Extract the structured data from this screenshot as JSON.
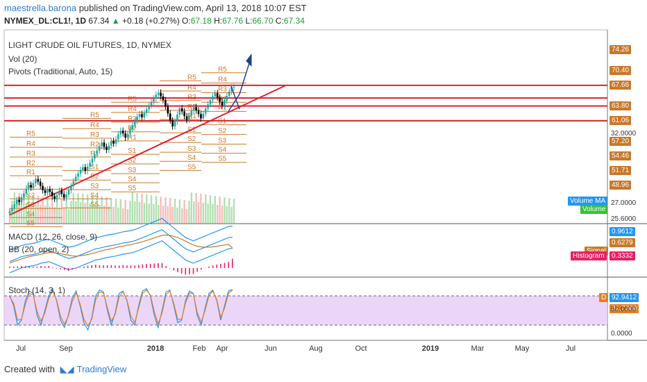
{
  "header": {
    "user": "maestrella.barona",
    "published": "published on TradingView.com, April 13, 2018 10:07 EST",
    "symbol": "NYMEX_DL:CL1!, 1D",
    "last": "67.34",
    "change": "+0.18 (+0.27%)",
    "o_label": "O:",
    "o": "67.18",
    "h_label": "H:",
    "h": "67.76",
    "l_label": "L:",
    "l": "66.70",
    "c_label": "C:",
    "c": "67.34"
  },
  "legends": {
    "title": "LIGHT CRUDE OIL FUTURES, 1D, NYMEX",
    "vol": "Vol (20)",
    "pivots": "Pivots (Traditional, Auto, 15)",
    "macd": "MACD (12, 26, close, 9)",
    "bb": "BB (20, open, 2)",
    "stoch": "Stoch (14, 3, 1)"
  },
  "footer": {
    "created": "Created with",
    "brand": "TradingView"
  },
  "colors": {
    "up": "#26a69a",
    "down": "#000000",
    "pivot": "#c8782a",
    "resistance": "#e0202a",
    "trend": "#e0202a",
    "arrow": "#1f3f8f",
    "stoch_fill": "#e6ccf5"
  },
  "price_tags": [
    {
      "label": "74.26",
      "value": 74.26,
      "color": "#c8782a"
    },
    {
      "label": "70.40",
      "value": 70.4,
      "color": "#c8782a"
    },
    {
      "label": "67.66",
      "value": 67.66,
      "color": "#c8782a"
    },
    {
      "label": "63.80",
      "value": 63.8,
      "color": "#c8782a"
    },
    {
      "label": "61.06",
      "value": 61.06,
      "color": "#c8782a"
    },
    {
      "label": "57.20",
      "value": 57.2,
      "color": "#c8782a"
    },
    {
      "label": "54.46",
      "value": 54.46,
      "color": "#c8782a"
    },
    {
      "label": "51.71",
      "value": 51.71,
      "color": "#c8782a"
    },
    {
      "label": "48.96",
      "value": 48.96,
      "color": "#c8782a"
    }
  ],
  "price_ticks": [
    {
      "label": "32.0000",
      "value": 58.5
    },
    {
      "label": "27.0000",
      "value": 45.5
    },
    {
      "label": "25.6000",
      "value": 42.5
    }
  ],
  "indicator_tags": [
    {
      "label": "Volume MA",
      "color": "#2196f3",
      "pane": "price"
    },
    {
      "label": "Volume",
      "color": "#35c235",
      "pane": "price"
    },
    {
      "label": "0.9612",
      "color": "#2196f3",
      "pane": "macd"
    },
    {
      "label": "0.6279",
      "color": "#c8782a",
      "pane": "macd"
    },
    {
      "label": "Signal",
      "color": "#c8782a",
      "pane": "macd"
    },
    {
      "label": "Histogram",
      "color": "#e91e63",
      "pane": "macd"
    },
    {
      "label": "0.3332",
      "color": "#e91e63",
      "pane": "macd"
    },
    {
      "label": "D",
      "color": "#e67e22",
      "pane": "stoch"
    },
    {
      "label": "92.9412",
      "color": "#2196f3",
      "pane": "stoch"
    },
    {
      "label": "91.7369",
      "color": "#e67e22",
      "pane": "stoch"
    }
  ],
  "stoch_ticks": [
    {
      "label": "50.0000",
      "value": 50
    },
    {
      "label": "0.0000",
      "value": 0
    }
  ],
  "chart_data": {
    "type": "candlestick",
    "x_ticks": [
      "Jul",
      "Sep",
      "2018",
      "Feb",
      "Apr",
      "Jun",
      "Aug",
      "Oct",
      "2019",
      "Mar",
      "May",
      "Jul"
    ],
    "y_range": [
      42,
      78
    ],
    "resistance_levels": [
      67.66,
      65.3,
      63.8,
      61.06
    ],
    "trendline": {
      "start": [
        0,
        43.5
      ],
      "end": [
        130,
        67.66
      ]
    },
    "pivot_labels": [
      "R5",
      "R4",
      "R3",
      "R2",
      "R1",
      "S1",
      "S2",
      "S3",
      "S4",
      "S5"
    ],
    "closes": [
      44.2,
      44.8,
      45.5,
      46.3,
      45.9,
      46.8,
      47.5,
      48.4,
      49.1,
      48.6,
      49.4,
      50.2,
      49.7,
      48.9,
      48.1,
      47.6,
      48.3,
      47.8,
      47.0,
      46.5,
      47.2,
      48.0,
      47.4,
      46.7,
      47.3,
      48.1,
      48.9,
      49.8,
      50.6,
      51.2,
      51.9,
      52.4,
      51.7,
      52.5,
      53.2,
      54.0,
      54.8,
      55.5,
      56.3,
      57.0,
      56.2,
      55.6,
      56.4,
      57.3,
      56.8,
      57.6,
      58.5,
      59.2,
      58.7,
      57.9,
      58.6,
      59.5,
      60.2,
      61.0,
      61.8,
      62.3,
      61.7,
      62.5,
      63.2,
      63.9,
      64.6,
      65.2,
      65.9,
      66.3,
      65.6,
      64.9,
      63.7,
      62.4,
      61.1,
      60.0,
      60.9,
      62.2,
      63.4,
      62.8,
      61.9,
      61.2,
      62.0,
      62.9,
      63.6,
      63.0,
      62.3,
      61.5,
      62.4,
      63.3,
      64.1,
      64.9,
      65.6,
      66.2,
      65.4,
      64.6,
      63.9,
      64.8,
      65.7,
      66.5,
      67.3,
      67.34
    ],
    "macd": [
      0.2,
      0.25,
      0.3,
      0.35,
      0.38,
      0.4,
      0.42,
      0.45,
      0.5,
      0.52,
      0.55,
      0.5,
      0.45,
      0.4,
      0.35,
      0.3,
      0.32,
      0.35,
      0.4,
      0.45,
      0.5,
      0.55,
      0.6,
      0.62,
      0.65,
      0.68,
      0.7,
      0.72,
      0.75,
      0.78,
      0.8,
      0.82,
      0.85,
      0.9,
      0.95,
      1.0,
      1.05,
      1.1,
      1.15,
      1.2,
      1.1,
      1.0,
      0.9,
      0.8,
      0.7,
      0.6,
      0.55,
      0.5,
      0.55,
      0.6,
      0.65,
      0.7,
      0.75,
      0.8,
      0.85,
      0.9,
      0.95,
      0.9612
    ],
    "macd_signal": [
      0.15,
      0.2,
      0.24,
      0.28,
      0.32,
      0.35,
      0.38,
      0.4,
      0.43,
      0.46,
      0.48,
      0.48,
      0.47,
      0.45,
      0.42,
      0.4,
      0.38,
      0.37,
      0.38,
      0.4,
      0.42,
      0.45,
      0.48,
      0.52,
      0.55,
      0.58,
      0.6,
      0.63,
      0.66,
      0.68,
      0.71,
      0.73,
      0.76,
      0.79,
      0.82,
      0.86,
      0.9,
      0.94,
      0.98,
      1.02,
      1.03,
      1.02,
      0.99,
      0.95,
      0.9,
      0.84,
      0.78,
      0.72,
      0.68,
      0.66,
      0.65,
      0.65,
      0.66,
      0.68,
      0.7,
      0.72,
      0.74,
      0.6279
    ],
    "stoch_k": [
      80,
      60,
      20,
      30,
      70,
      90,
      85,
      40,
      20,
      50,
      80,
      95,
      70,
      30,
      15,
      40,
      75,
      90,
      60,
      25,
      10,
      35,
      80,
      92,
      88,
      50,
      20,
      45,
      85,
      90,
      70,
      30,
      20,
      60,
      90,
      95,
      80,
      40,
      15,
      50,
      88,
      92,
      60,
      25,
      30,
      70,
      90,
      85,
      40,
      20,
      55,
      85,
      92,
      70,
      30,
      60,
      90,
      92.9412
    ],
    "stoch_d": [
      78,
      65,
      30,
      32,
      62,
      85,
      82,
      48,
      28,
      45,
      75,
      90,
      72,
      38,
      22,
      38,
      68,
      86,
      64,
      32,
      18,
      32,
      72,
      88,
      86,
      55,
      28,
      42,
      78,
      88,
      72,
      38,
      25,
      55,
      85,
      92,
      82,
      48,
      22,
      45,
      82,
      90,
      64,
      32,
      32,
      65,
      86,
      84,
      46,
      26,
      50,
      80,
      90,
      72,
      36,
      55,
      85,
      91.7369
    ]
  }
}
